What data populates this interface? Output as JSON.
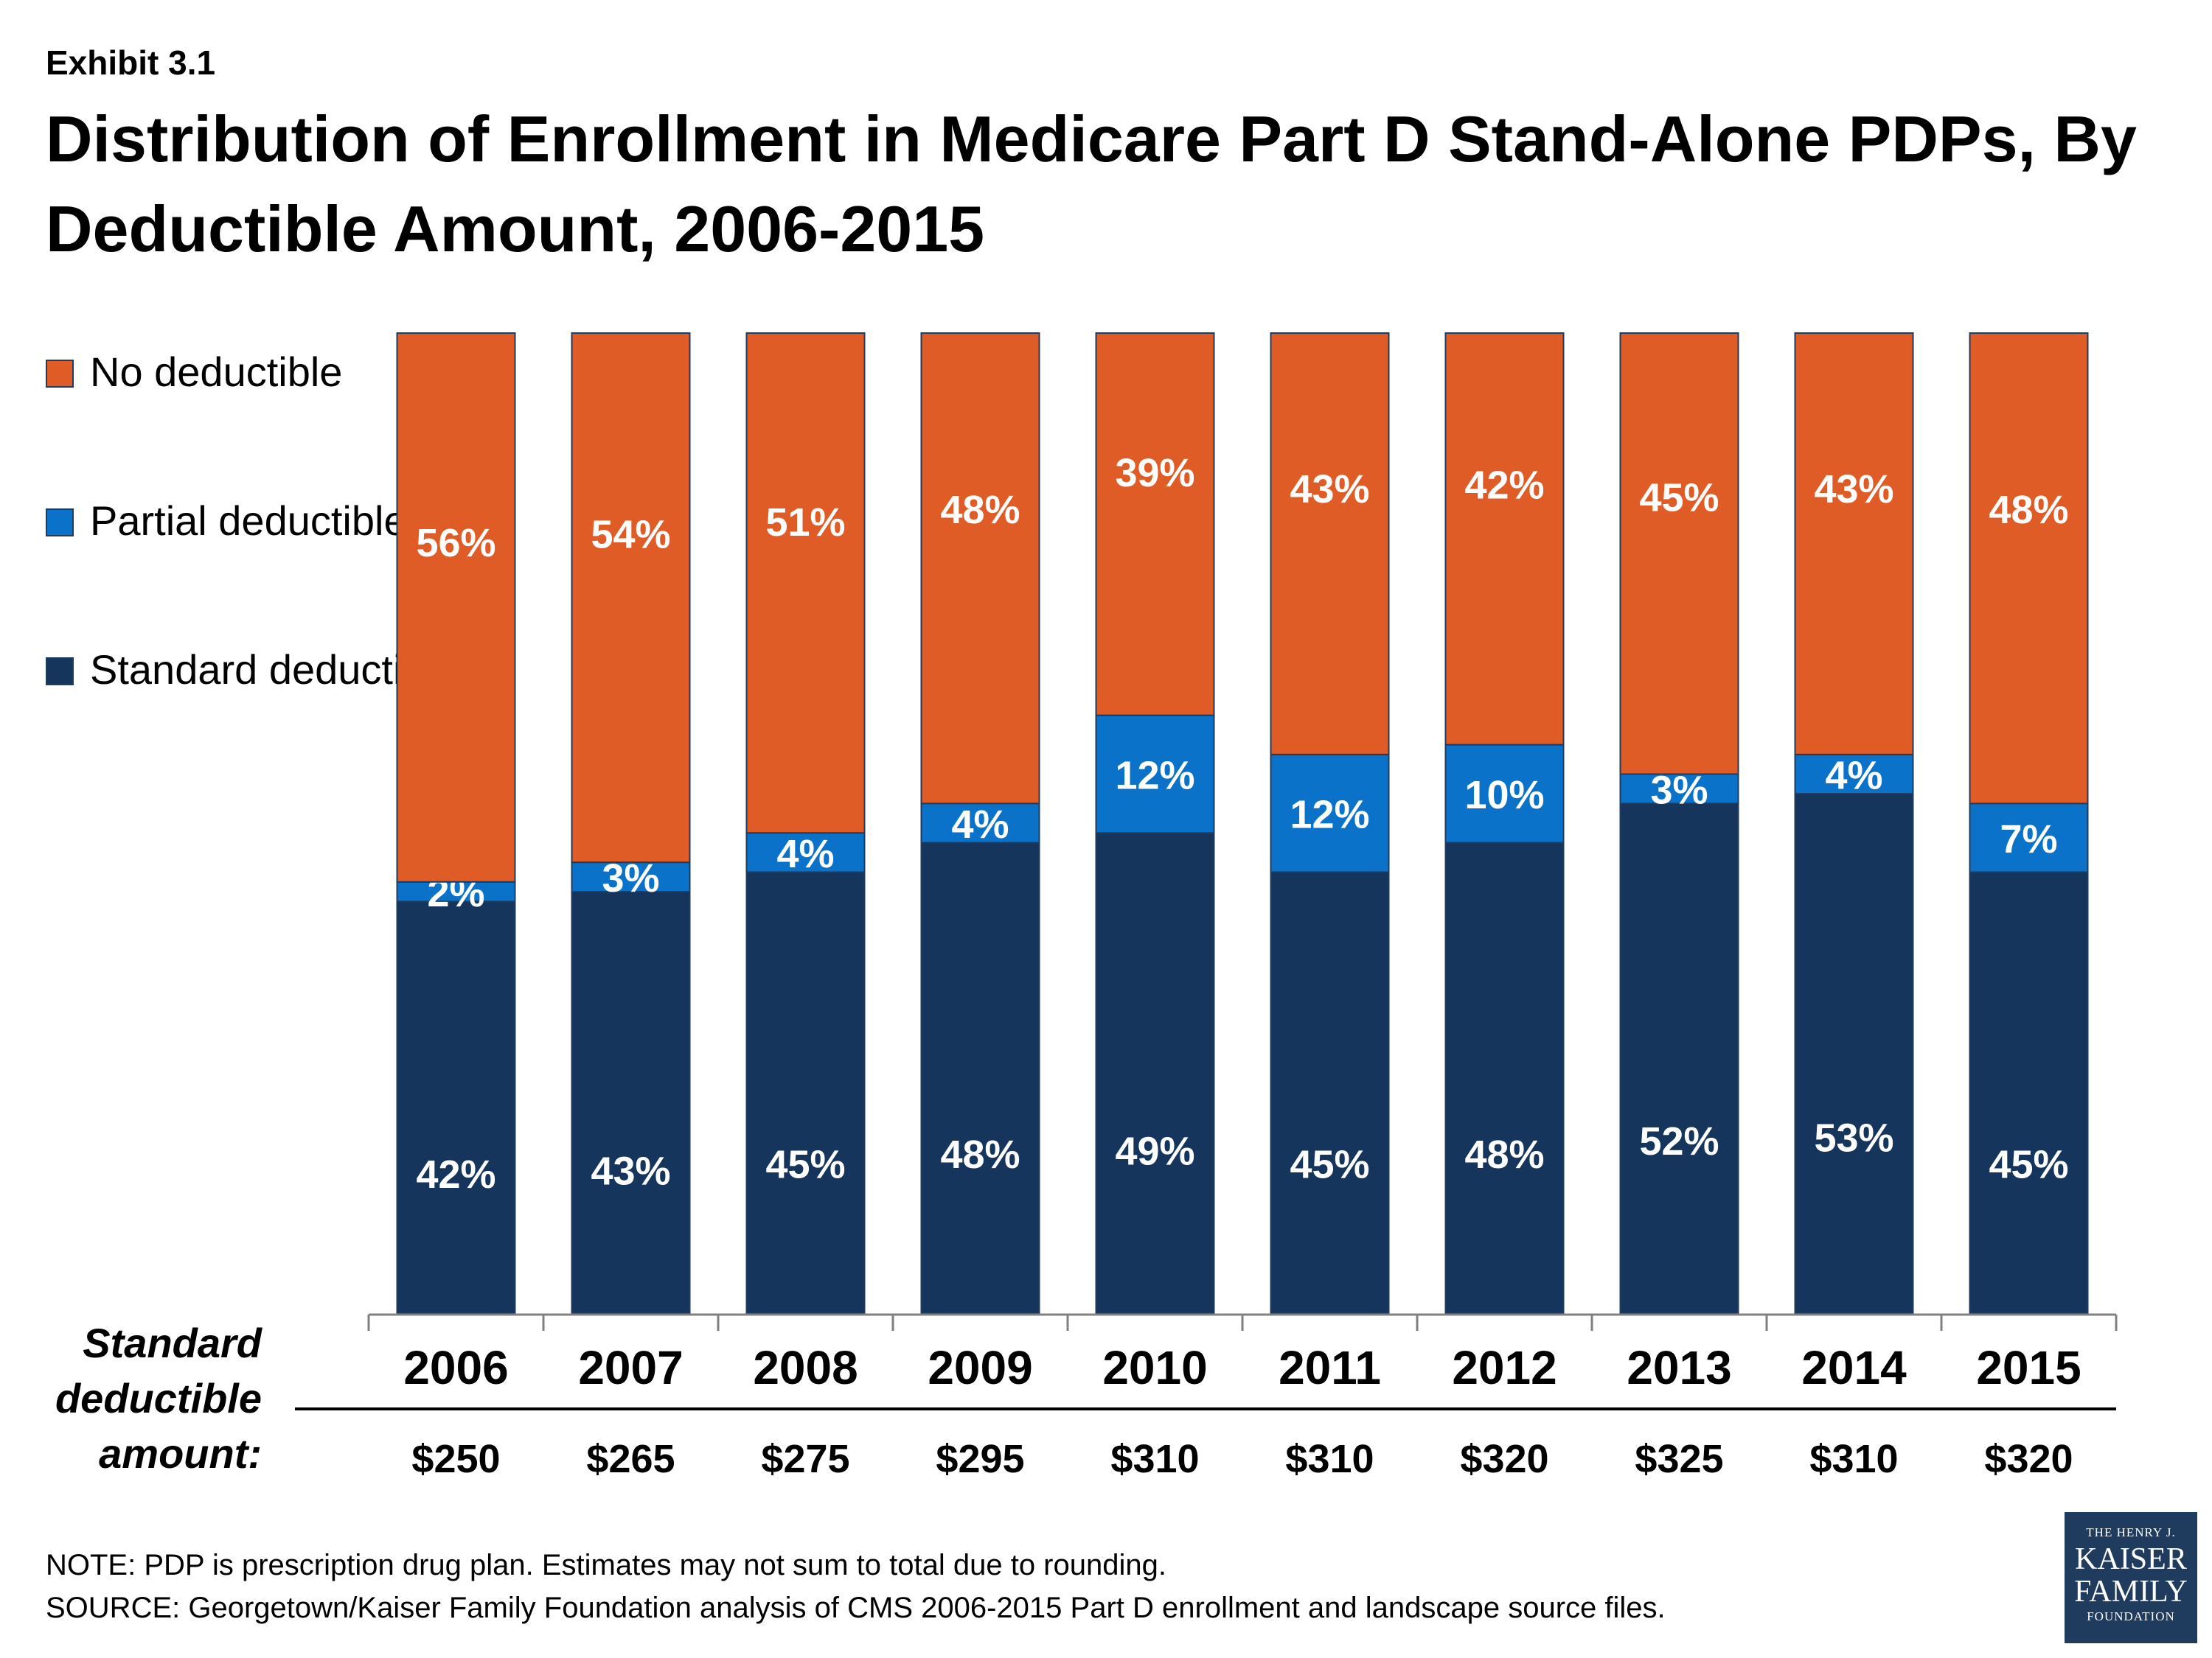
{
  "header": {
    "exhibit": "Exhibit 3.1",
    "title": "Distribution of Enrollment in Medicare Part D Stand-Alone PDPs, By Deductible Amount, 2006-2015"
  },
  "legend": [
    {
      "label": "No deductible",
      "color": "#e05c26"
    },
    {
      "label": "Partial deductible",
      "color": "#0a73c9"
    },
    {
      "label": "Standard deductible",
      "color": "#15355c"
    }
  ],
  "row_label": "Standard deductible amount:",
  "deductible_amounts": [
    "$250",
    "$265",
    "$275",
    "$295",
    "$310",
    "$310",
    "$320",
    "$325",
    "$310",
    "$320"
  ],
  "footer": {
    "note": "NOTE: PDP is prescription drug plan. Estimates may not sum to total due to rounding.",
    "source": "SOURCE: Georgetown/Kaiser Family Foundation analysis of CMS 2006-2015 Part D enrollment and landscape source files."
  },
  "logo": {
    "line1": "THE HENRY J.",
    "line2": "KAISER",
    "line3": "FAMILY",
    "line4": "FOUNDATION"
  },
  "chart_data": {
    "type": "bar",
    "stacked": true,
    "categories": [
      "2006",
      "2007",
      "2008",
      "2009",
      "2010",
      "2011",
      "2012",
      "2013",
      "2014",
      "2015"
    ],
    "series": [
      {
        "name": "Standard deductible",
        "color": "#15355c",
        "values": [
          42,
          43,
          45,
          48,
          49,
          45,
          48,
          52,
          53,
          45
        ]
      },
      {
        "name": "Partial deductible",
        "color": "#0a73c9",
        "values": [
          2,
          3,
          4,
          4,
          12,
          12,
          10,
          3,
          4,
          7
        ]
      },
      {
        "name": "No deductible",
        "color": "#e05c26",
        "values": [
          56,
          54,
          51,
          48,
          39,
          43,
          42,
          45,
          43,
          48
        ]
      }
    ],
    "value_suffix": "%",
    "ylim": [
      0,
      100
    ],
    "grid": false,
    "legend_position": "left"
  }
}
